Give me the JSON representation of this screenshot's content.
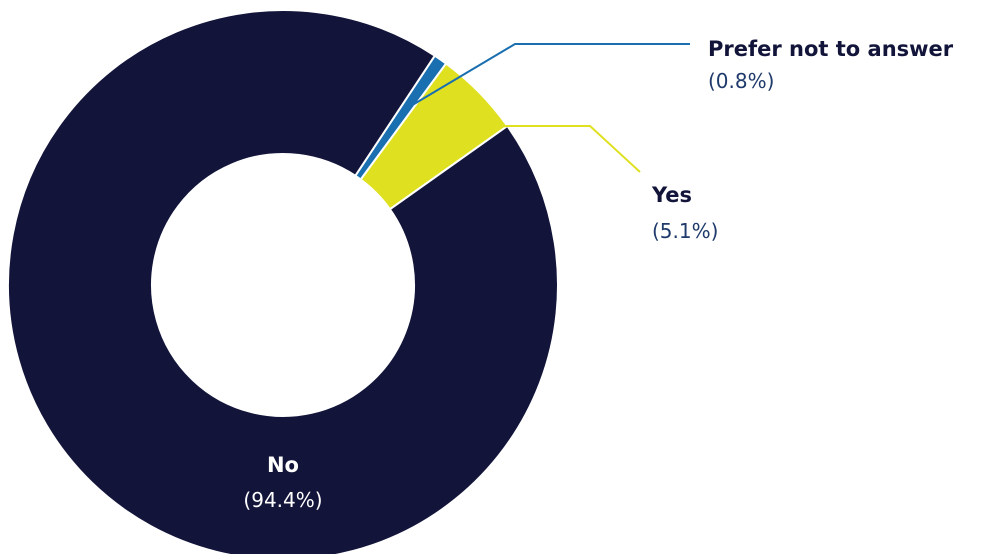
{
  "chart_data": {
    "type": "pie",
    "variant": "donut",
    "slices": [
      {
        "name": "Prefer not to answer",
        "value": 0.8,
        "label": "(0.8%)",
        "color": "#1a6fb0"
      },
      {
        "name": "Yes",
        "value": 5.1,
        "label": "(5.1%)",
        "color": "#dfe020"
      },
      {
        "name": "No",
        "value": 94.4,
        "label": "(94.4%)",
        "color": "#12143a"
      }
    ],
    "title": "",
    "legend": "none",
    "label_colors": {
      "outside_name": "#12143a",
      "outside_pct": "#1f3a6b",
      "inside": "#ffffff"
    }
  }
}
